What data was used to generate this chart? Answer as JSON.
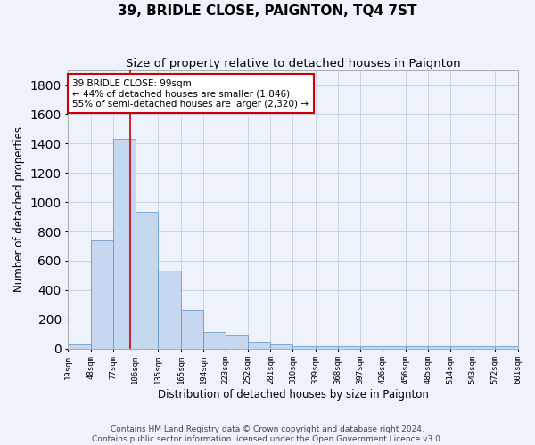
{
  "title": "39, BRIDLE CLOSE, PAIGNTON, TQ4 7ST",
  "subtitle": "Size of property relative to detached houses in Paignton",
  "xlabel": "Distribution of detached houses by size in Paignton",
  "ylabel": "Number of detached properties",
  "bar_values": [
    25,
    740,
    1430,
    935,
    530,
    265,
    110,
    95,
    45,
    25,
    15,
    15,
    15,
    15,
    15,
    15,
    15,
    15,
    15,
    15
  ],
  "bin_edges": [
    19,
    48,
    77,
    106,
    135,
    165,
    194,
    223,
    252,
    281,
    310,
    339,
    368,
    397,
    426,
    456,
    485,
    514,
    543,
    572,
    601
  ],
  "tick_labels": [
    "19sqm",
    "48sqm",
    "77sqm",
    "106sqm",
    "135sqm",
    "165sqm",
    "194sqm",
    "223sqm",
    "252sqm",
    "281sqm",
    "310sqm",
    "339sqm",
    "368sqm",
    "397sqm",
    "426sqm",
    "456sqm",
    "485sqm",
    "514sqm",
    "543sqm",
    "572sqm",
    "601sqm"
  ],
  "bar_color": "#c5d8f0",
  "bar_edge_color": "#5a90c8",
  "grid_color": "#c8d4e8",
  "background_color": "#eef2fa",
  "vline_x": 99,
  "vline_color": "#cc0000",
  "annotation_text": "39 BRIDLE CLOSE: 99sqm\n← 44% of detached houses are smaller (1,846)\n55% of semi-detached houses are larger (2,320) →",
  "annotation_box_color": "#ffffff",
  "annotation_box_edge": "#cc0000",
  "ylim": [
    0,
    1900
  ],
  "yticks": [
    0,
    200,
    400,
    600,
    800,
    1000,
    1200,
    1400,
    1600,
    1800
  ],
  "footer_text": "Contains HM Land Registry data © Crown copyright and database right 2024.\nContains public sector information licensed under the Open Government Licence v3.0.",
  "title_fontsize": 11,
  "subtitle_fontsize": 9.5,
  "xlabel_fontsize": 8.5,
  "ylabel_fontsize": 8.5,
  "tick_fontsize": 6.5,
  "annotation_fontsize": 7.5,
  "footer_fontsize": 6.5
}
